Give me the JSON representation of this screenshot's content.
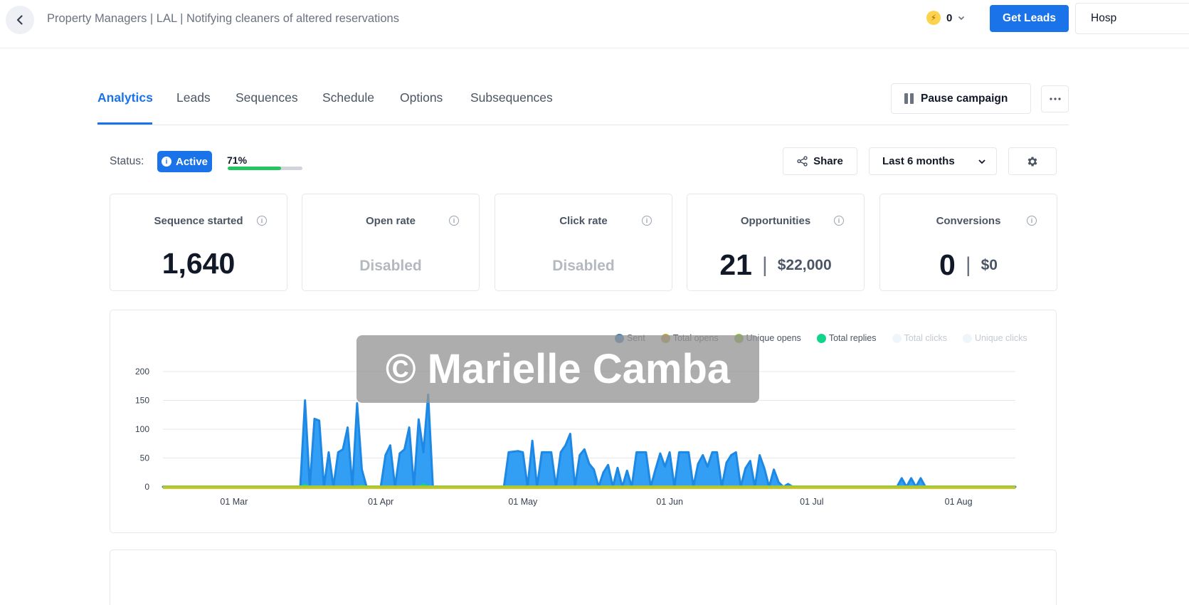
{
  "header": {
    "breadcrumb": "Property Managers | LAL | Notifying cleaners of altered reservations",
    "credits": "0",
    "get_leads_label": "Get Leads",
    "workspace_label": "Hosp"
  },
  "tabs": [
    {
      "label": "Analytics",
      "active": true
    },
    {
      "label": "Leads",
      "active": false
    },
    {
      "label": "Sequences",
      "active": false
    },
    {
      "label": "Schedule",
      "active": false
    },
    {
      "label": "Options",
      "active": false
    },
    {
      "label": "Subsequences",
      "active": false
    }
  ],
  "actions": {
    "pause_label": "Pause campaign",
    "share_label": "Share",
    "range_label": "Last 6 months"
  },
  "status": {
    "label": "Status:",
    "badge": "Active",
    "progress_text": "71%",
    "progress_value": 0.71
  },
  "cards": {
    "sequence_started": {
      "title": "Sequence started",
      "value": "1,640"
    },
    "open_rate": {
      "title": "Open rate",
      "value": "Disabled"
    },
    "click_rate": {
      "title": "Click rate",
      "value": "Disabled"
    },
    "opportunities": {
      "title": "Opportunities",
      "count": "21",
      "separator": "|",
      "amount": "$22,000"
    },
    "conversions": {
      "title": "Conversions",
      "count": "0",
      "separator": "|",
      "amount": "$0"
    }
  },
  "legend": [
    {
      "label": "Sent",
      "color": "#3b82c4",
      "muted": false
    },
    {
      "label": "Total opens",
      "color": "#c9a13b",
      "muted": false
    },
    {
      "label": "Unique opens",
      "color": "#8fbf3a",
      "muted": false
    },
    {
      "label": "Total replies",
      "color": "#10d48a",
      "muted": false
    },
    {
      "label": "Total clicks",
      "color": "#eef6fb",
      "muted": true
    },
    {
      "label": "Unique clicks",
      "color": "#eef6fb",
      "muted": true
    }
  ],
  "chart_data": {
    "type": "area",
    "y_ticks": [
      "0",
      "50",
      "100",
      "150",
      "200"
    ],
    "ylim": [
      0,
      200
    ],
    "x_tick_labels": [
      "01 Mar",
      "01 Apr",
      "01 May",
      "01 Jun",
      "01 Jul",
      "01 Aug"
    ],
    "x_tick_days": [
      15,
      46,
      76,
      107,
      137,
      168
    ],
    "xlim": [
      0,
      180
    ],
    "grid": true,
    "legend_position": "top-right",
    "series": [
      {
        "name": "Sent",
        "color": "#2196f3",
        "points": [
          [
            0,
            0
          ],
          [
            29,
            0
          ],
          [
            30,
            150
          ],
          [
            31,
            0
          ],
          [
            32,
            118
          ],
          [
            33,
            115
          ],
          [
            34,
            0
          ],
          [
            35,
            60
          ],
          [
            36,
            0
          ],
          [
            37,
            60
          ],
          [
            38,
            65
          ],
          [
            39,
            103
          ],
          [
            40,
            0
          ],
          [
            41,
            145
          ],
          [
            42,
            30
          ],
          [
            43,
            0
          ],
          [
            46,
            0
          ],
          [
            47,
            55
          ],
          [
            48,
            72
          ],
          [
            49,
            0
          ],
          [
            50,
            58
          ],
          [
            51,
            65
          ],
          [
            52,
            103
          ],
          [
            53,
            0
          ],
          [
            54,
            117
          ],
          [
            55,
            60
          ],
          [
            56,
            160
          ],
          [
            57,
            0
          ],
          [
            72,
            0
          ],
          [
            73,
            60
          ],
          [
            75,
            62
          ],
          [
            76,
            60
          ],
          [
            77,
            0
          ],
          [
            78,
            80
          ],
          [
            79,
            0
          ],
          [
            80,
            60
          ],
          [
            82,
            60
          ],
          [
            83,
            0
          ],
          [
            84,
            60
          ],
          [
            85,
            72
          ],
          [
            86,
            92
          ],
          [
            87,
            0
          ],
          [
            88,
            55
          ],
          [
            89,
            65
          ],
          [
            90,
            40
          ],
          [
            91,
            30
          ],
          [
            92,
            0
          ],
          [
            93,
            25
          ],
          [
            94,
            38
          ],
          [
            95,
            0
          ],
          [
            96,
            33
          ],
          [
            97,
            0
          ],
          [
            98,
            28
          ],
          [
            99,
            0
          ],
          [
            100,
            60
          ],
          [
            102,
            60
          ],
          [
            103,
            0
          ],
          [
            104,
            30
          ],
          [
            105,
            58
          ],
          [
            106,
            35
          ],
          [
            107,
            60
          ],
          [
            108,
            0
          ],
          [
            109,
            60
          ],
          [
            111,
            60
          ],
          [
            112,
            0
          ],
          [
            113,
            40
          ],
          [
            114,
            55
          ],
          [
            115,
            35
          ],
          [
            116,
            60
          ],
          [
            117,
            60
          ],
          [
            118,
            0
          ],
          [
            119,
            42
          ],
          [
            120,
            55
          ],
          [
            121,
            60
          ],
          [
            122,
            0
          ],
          [
            123,
            32
          ],
          [
            124,
            45
          ],
          [
            125,
            0
          ],
          [
            126,
            55
          ],
          [
            127,
            32
          ],
          [
            128,
            0
          ],
          [
            129,
            30
          ],
          [
            130,
            8
          ],
          [
            131,
            0
          ],
          [
            132,
            5
          ],
          [
            133,
            0
          ],
          [
            155,
            0
          ],
          [
            156,
            15
          ],
          [
            157,
            0
          ],
          [
            158,
            15
          ],
          [
            159,
            0
          ],
          [
            160,
            15
          ],
          [
            161,
            0
          ],
          [
            180,
            0
          ]
        ]
      },
      {
        "name": "Total opens",
        "color": "#c9a13b",
        "points": [
          [
            0,
            0
          ],
          [
            180,
            0
          ]
        ]
      },
      {
        "name": "Unique opens",
        "color": "#8fbf3a",
        "points": [
          [
            0,
            0
          ],
          [
            180,
            0
          ]
        ]
      },
      {
        "name": "Total replies",
        "color": "#10d48a",
        "points": [
          [
            0,
            0
          ],
          [
            29,
            0
          ],
          [
            30,
            4
          ],
          [
            31,
            0
          ],
          [
            41,
            0
          ],
          [
            42,
            3
          ],
          [
            43,
            0
          ],
          [
            54,
            0
          ],
          [
            55,
            5
          ],
          [
            56,
            0
          ],
          [
            180,
            0
          ]
        ]
      },
      {
        "name": "Total clicks",
        "color": "#eef6fb",
        "points": [
          [
            0,
            0
          ],
          [
            180,
            0
          ]
        ]
      },
      {
        "name": "Unique clicks",
        "color": "#eef6fb",
        "points": [
          [
            0,
            0
          ],
          [
            180,
            0
          ]
        ]
      }
    ]
  },
  "watermark": "© Marielle Camba"
}
